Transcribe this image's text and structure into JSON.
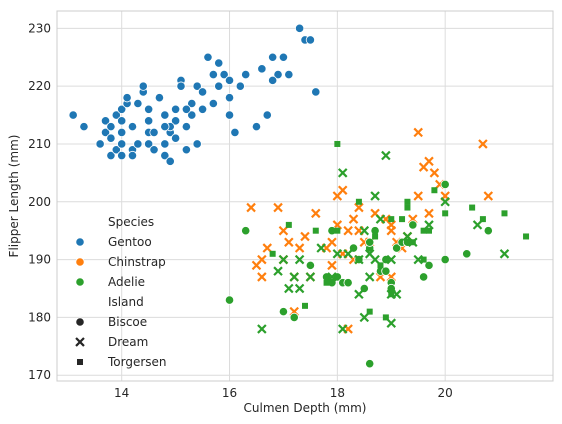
{
  "chart_data": {
    "type": "scatter",
    "title": "",
    "xlabel": "Culmen Depth (mm)",
    "ylabel": "Flipper Length (mm)",
    "xlim": [
      12.8,
      22.0
    ],
    "ylim": [
      169,
      233
    ],
    "xticks": [
      14,
      16,
      18,
      20
    ],
    "yticks": [
      170,
      180,
      190,
      200,
      210,
      220,
      230
    ],
    "grid": true,
    "legend_position": "lower-left",
    "legend": {
      "hue_title": "Species",
      "style_title": "Island",
      "hue_entries": [
        {
          "name": "Gentoo",
          "color": "#1f77b4"
        },
        {
          "name": "Chinstrap",
          "color": "#ff7f0e"
        },
        {
          "name": "Adelie",
          "color": "#2ca02c"
        }
      ],
      "style_entries": [
        {
          "name": "Biscoe",
          "marker": "circle"
        },
        {
          "name": "Dream",
          "marker": "x"
        },
        {
          "name": "Torgersen",
          "marker": "square"
        }
      ]
    },
    "series": [
      {
        "species": "Gentoo",
        "island": "Biscoe",
        "points": [
          [
            13.1,
            215
          ],
          [
            13.3,
            213
          ],
          [
            13.6,
            210
          ],
          [
            13.7,
            212
          ],
          [
            13.7,
            214
          ],
          [
            13.8,
            208
          ],
          [
            13.8,
            213
          ],
          [
            13.8,
            211
          ],
          [
            13.9,
            209
          ],
          [
            13.9,
            215
          ],
          [
            14.0,
            210
          ],
          [
            14.0,
            208
          ],
          [
            14.0,
            212
          ],
          [
            14.0,
            214
          ],
          [
            14.0,
            216
          ],
          [
            14.1,
            217
          ],
          [
            14.1,
            218
          ],
          [
            14.2,
            213
          ],
          [
            14.2,
            209
          ],
          [
            14.2,
            208
          ],
          [
            14.3,
            217
          ],
          [
            14.3,
            210
          ],
          [
            14.4,
            219
          ],
          [
            14.4,
            220
          ],
          [
            14.5,
            212
          ],
          [
            14.5,
            214
          ],
          [
            14.5,
            216
          ],
          [
            14.5,
            210
          ],
          [
            14.6,
            209
          ],
          [
            14.6,
            212
          ],
          [
            14.7,
            218
          ],
          [
            14.8,
            215
          ],
          [
            14.8,
            210
          ],
          [
            14.8,
            208
          ],
          [
            14.9,
            212
          ],
          [
            14.9,
            207
          ],
          [
            15.0,
            211
          ],
          [
            15.0,
            214
          ],
          [
            15.0,
            216
          ],
          [
            15.1,
            221
          ],
          [
            15.2,
            209
          ],
          [
            15.2,
            213
          ],
          [
            15.3,
            215
          ],
          [
            15.3,
            217
          ],
          [
            15.4,
            210
          ],
          [
            15.4,
            220
          ],
          [
            15.5,
            219
          ],
          [
            15.5,
            216
          ],
          [
            15.6,
            225
          ],
          [
            15.7,
            222
          ],
          [
            15.7,
            217
          ],
          [
            15.8,
            220
          ],
          [
            15.8,
            224
          ],
          [
            16.0,
            218
          ],
          [
            16.0,
            215
          ],
          [
            16.1,
            212
          ],
          [
            16.2,
            220
          ],
          [
            16.3,
            222
          ],
          [
            16.5,
            213
          ],
          [
            16.6,
            223
          ],
          [
            16.7,
            215
          ],
          [
            16.8,
            225
          ],
          [
            17.0,
            225
          ],
          [
            17.1,
            222
          ],
          [
            17.3,
            230
          ],
          [
            17.4,
            228
          ],
          [
            17.5,
            228
          ],
          [
            17.6,
            219
          ],
          [
            16.9,
            222
          ],
          [
            16.8,
            221
          ],
          [
            15.9,
            222
          ],
          [
            15.1,
            220
          ],
          [
            14.5,
            214
          ],
          [
            14.9,
            213
          ],
          [
            15.2,
            216
          ],
          [
            14.8,
            213
          ],
          [
            16.0,
            221
          ]
        ]
      },
      {
        "species": "Chinstrap",
        "island": "Dream",
        "points": [
          [
            16.4,
            199
          ],
          [
            16.5,
            189
          ],
          [
            16.6,
            187
          ],
          [
            16.6,
            190
          ],
          [
            16.7,
            192
          ],
          [
            16.9,
            199
          ],
          [
            17.0,
            195
          ],
          [
            17.1,
            193
          ],
          [
            17.2,
            181
          ],
          [
            17.2,
            187
          ],
          [
            17.3,
            192
          ],
          [
            17.4,
            194
          ],
          [
            17.5,
            187
          ],
          [
            17.6,
            198
          ],
          [
            17.8,
            192
          ],
          [
            17.9,
            193
          ],
          [
            18.0,
            196
          ],
          [
            18.0,
            201
          ],
          [
            18.1,
            202
          ],
          [
            18.2,
            195
          ],
          [
            18.3,
            197
          ],
          [
            18.4,
            195
          ],
          [
            18.5,
            193
          ],
          [
            18.6,
            193
          ],
          [
            18.7,
            198
          ],
          [
            18.8,
            187
          ],
          [
            18.9,
            197
          ],
          [
            19.0,
            195
          ],
          [
            19.0,
            196
          ],
          [
            19.1,
            193
          ],
          [
            19.2,
            192
          ],
          [
            19.4,
            197
          ],
          [
            19.5,
            201
          ],
          [
            19.6,
            206
          ],
          [
            19.7,
            207
          ],
          [
            19.8,
            205
          ],
          [
            19.9,
            203
          ],
          [
            20.0,
            201
          ],
          [
            20.7,
            210
          ],
          [
            20.8,
            201
          ],
          [
            19.5,
            212
          ],
          [
            18.2,
            178
          ],
          [
            19.0,
            187
          ],
          [
            18.3,
            190
          ],
          [
            17.9,
            189
          ],
          [
            19.7,
            198
          ],
          [
            18.1,
            191
          ],
          [
            17.0,
            190
          ],
          [
            18.4,
            199
          ],
          [
            19.3,
            194
          ]
        ]
      },
      {
        "species": "Adelie",
        "island": "Biscoe",
        "points": [
          [
            16.0,
            183
          ],
          [
            16.3,
            195
          ],
          [
            17.0,
            181
          ],
          [
            17.2,
            180
          ],
          [
            17.5,
            189
          ],
          [
            17.8,
            187
          ],
          [
            17.9,
            186
          ],
          [
            18.0,
            187
          ],
          [
            18.1,
            186
          ],
          [
            18.2,
            186
          ],
          [
            18.3,
            192
          ],
          [
            18.4,
            190
          ],
          [
            18.5,
            185
          ],
          [
            18.6,
            192
          ],
          [
            18.6,
            172
          ],
          [
            18.7,
            195
          ],
          [
            18.8,
            188
          ],
          [
            18.9,
            190
          ],
          [
            19.0,
            186
          ],
          [
            19.1,
            192
          ],
          [
            19.2,
            193
          ],
          [
            19.3,
            193
          ],
          [
            19.4,
            196
          ],
          [
            19.6,
            187
          ],
          [
            19.7,
            189
          ],
          [
            20.0,
            190
          ],
          [
            20.0,
            203
          ],
          [
            20.4,
            191
          ],
          [
            20.8,
            195
          ],
          [
            18.6,
            193
          ],
          [
            18.9,
            188
          ],
          [
            17.9,
            195
          ],
          [
            19.0,
            185
          ]
        ]
      },
      {
        "species": "Adelie",
        "island": "Dream",
        "points": [
          [
            16.6,
            178
          ],
          [
            16.9,
            188
          ],
          [
            17.0,
            190
          ],
          [
            17.1,
            185
          ],
          [
            17.2,
            187
          ],
          [
            17.3,
            185
          ],
          [
            17.3,
            190
          ],
          [
            17.5,
            187
          ],
          [
            17.7,
            192
          ],
          [
            17.9,
            187
          ],
          [
            18.0,
            191
          ],
          [
            18.1,
            178
          ],
          [
            18.2,
            191
          ],
          [
            18.4,
            184
          ],
          [
            18.5,
            195
          ],
          [
            18.5,
            180
          ],
          [
            18.6,
            191
          ],
          [
            18.6,
            187
          ],
          [
            18.7,
            190
          ],
          [
            18.8,
            197
          ],
          [
            18.9,
            208
          ],
          [
            19.0,
            190
          ],
          [
            19.0,
            184
          ],
          [
            19.0,
            179
          ],
          [
            19.1,
            184
          ],
          [
            19.3,
            194
          ],
          [
            19.5,
            190
          ],
          [
            19.7,
            196
          ],
          [
            20.0,
            200
          ],
          [
            20.6,
            196
          ],
          [
            21.1,
            191
          ],
          [
            18.4,
            190
          ],
          [
            18.7,
            201
          ],
          [
            18.1,
            205
          ],
          [
            19.4,
            193
          ]
        ]
      },
      {
        "species": "Adelie",
        "island": "Torgersen",
        "points": [
          [
            16.8,
            191
          ],
          [
            17.1,
            196
          ],
          [
            17.4,
            182
          ],
          [
            17.6,
            195
          ],
          [
            17.8,
            186
          ],
          [
            18.0,
            210
          ],
          [
            18.0,
            195
          ],
          [
            18.4,
            200
          ],
          [
            18.7,
            194
          ],
          [
            18.8,
            189
          ],
          [
            18.9,
            180
          ],
          [
            19.0,
            197
          ],
          [
            19.2,
            197
          ],
          [
            19.3,
            199
          ],
          [
            19.4,
            193
          ],
          [
            19.6,
            195
          ],
          [
            19.6,
            190
          ],
          [
            19.7,
            195
          ],
          [
            19.8,
            202
          ],
          [
            20.0,
            198
          ],
          [
            20.5,
            199
          ],
          [
            20.7,
            197
          ],
          [
            21.1,
            198
          ],
          [
            21.5,
            194
          ],
          [
            19.3,
            200
          ],
          [
            18.6,
            181
          ],
          [
            19.0,
            184
          ]
        ]
      }
    ]
  }
}
